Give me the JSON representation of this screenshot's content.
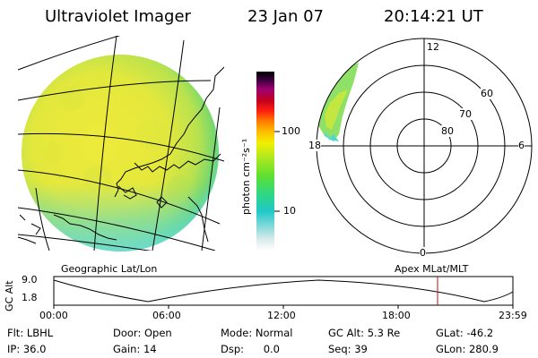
{
  "header": {
    "instrument": "Ultraviolet Imager",
    "date": "23 Jan 07",
    "time": "20:14:21 UT"
  },
  "colorbar": {
    "unit_label": "photon cm⁻²s⁻¹",
    "ticks": [
      "100",
      "10"
    ]
  },
  "polar_plot": {
    "mlt_labels": {
      "top": "12",
      "bottom": "0",
      "left": "18",
      "right": "6"
    },
    "lat_labels": [
      "60",
      "70",
      "80"
    ]
  },
  "projections": {
    "left": "Geographic Lat/Lon",
    "right": "Apex MLat/MLT"
  },
  "orbit_plot": {
    "ylabel": "GC Alt",
    "yticks": [
      "9.0",
      "1.8"
    ],
    "xticks": [
      "00:00",
      "06:00",
      "12:00",
      "18:00",
      "23:59"
    ]
  },
  "status": {
    "flt_label": "Flt:",
    "flt_value": "LBHL",
    "door_label": "Door:",
    "door_value": "Open",
    "mode_label": "Mode:",
    "mode_value": "Normal",
    "gcalt_label": "GC Alt:",
    "gcalt_value": "5.3 Re",
    "glat_label": "GLat:",
    "glat_value": "-46.2",
    "ip_label": "IP:",
    "ip_value": "36.0",
    "gain_label": "Gain:",
    "gain_value": "14",
    "dsp_label": "Dsp:",
    "dsp_value": "0.0",
    "seq_label": "Seq:",
    "seq_value": "39",
    "glon_label": "GLon:",
    "glon_value": "280.9"
  },
  "colors": {
    "disk_main": "#e6e83a",
    "disk_edge": "#7ad86a",
    "disk_low": "#4fd6d0",
    "orbit_marker": "#c01010"
  }
}
